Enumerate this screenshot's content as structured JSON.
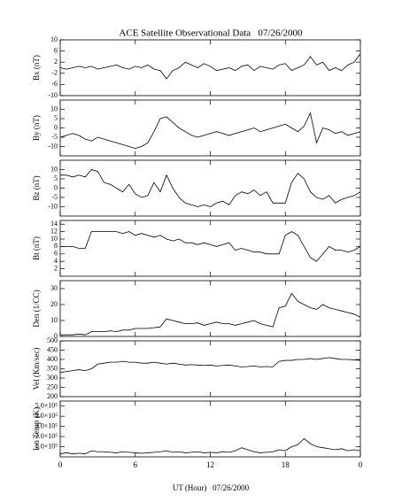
{
  "chart_data": [
    {
      "type": "line",
      "title": "ACE Satellite Observational Data   07/26/2000",
      "ylabel": "Bx (nT)",
      "color": "#000000",
      "x": [
        0,
        0.5,
        1,
        1.5,
        2,
        2.5,
        3,
        3.5,
        4,
        4.5,
        5,
        5.5,
        6,
        6.5,
        7,
        7.5,
        8,
        8.5,
        9,
        9.5,
        10,
        10.5,
        11,
        11.5,
        12,
        12.5,
        13,
        13.5,
        14,
        14.5,
        15,
        15.5,
        16,
        16.5,
        17,
        17.5,
        18,
        18.5,
        19,
        19.5,
        20,
        20.5,
        21,
        21.5,
        22,
        22.5,
        23,
        23.5,
        24
      ],
      "values": [
        0,
        -0.5,
        0,
        0.5,
        0,
        0.5,
        -0.5,
        0,
        0.5,
        1,
        0,
        -0.5,
        0.5,
        0,
        1,
        -0.5,
        -1,
        -4,
        -1,
        0,
        2,
        1,
        0,
        1.5,
        0.5,
        -1,
        -0.5,
        0,
        -1,
        0.5,
        1,
        -1,
        0.5,
        0,
        -0.5,
        1,
        1.5,
        -1,
        0,
        1,
        4,
        1,
        2,
        -1,
        0,
        -1,
        1,
        2,
        5
      ],
      "xlim": [
        0,
        24
      ],
      "ylim": [
        -10,
        10
      ],
      "yticks": [
        -10,
        -6,
        -2,
        2,
        6,
        10
      ]
    },
    {
      "type": "line",
      "ylabel": "By (nT)",
      "color": "#000000",
      "x": [
        0,
        0.5,
        1,
        1.5,
        2,
        2.5,
        3,
        3.5,
        4,
        4.5,
        5,
        5.5,
        6,
        6.5,
        7,
        7.5,
        8,
        8.5,
        9,
        9.5,
        10,
        10.5,
        11,
        11.5,
        12,
        12.5,
        13,
        13.5,
        14,
        14.5,
        15,
        15.5,
        16,
        16.5,
        17,
        17.5,
        18,
        18.5,
        19,
        19.5,
        20,
        20.5,
        21,
        21.5,
        22,
        22.5,
        23,
        23.5,
        24
      ],
      "values": [
        -5,
        -4,
        -3,
        -4,
        -6,
        -7,
        -5,
        -6,
        -7,
        -8,
        -9,
        -10,
        -11,
        -10,
        -8,
        -2,
        5,
        6,
        3,
        0,
        -2,
        -4,
        -5,
        -4,
        -3,
        -2,
        -3,
        -4,
        -3,
        -2,
        -1,
        0,
        -2,
        -1,
        0,
        1,
        2,
        0,
        -2,
        1,
        8,
        -8,
        0,
        -1,
        -3,
        -2,
        -4,
        -3,
        -2
      ],
      "xlim": [
        0,
        24
      ],
      "ylim": [
        -15,
        15
      ],
      "yticks": [
        -10,
        -5,
        0,
        5,
        10
      ]
    },
    {
      "type": "line",
      "ylabel": "Bz (nT)",
      "color": "#000000",
      "x": [
        0,
        0.5,
        1,
        1.5,
        2,
        2.5,
        3,
        3.5,
        4,
        4.5,
        5,
        5.5,
        6,
        6.5,
        7,
        7.5,
        8,
        8.5,
        9,
        9.5,
        10,
        10.5,
        11,
        11.5,
        12,
        12.5,
        13,
        13.5,
        14,
        14.5,
        15,
        15.5,
        16,
        16.5,
        17,
        17.5,
        18,
        18.5,
        19,
        19.5,
        20,
        20.5,
        21,
        21.5,
        22,
        22.5,
        23,
        23.5,
        24
      ],
      "values": [
        7,
        7,
        6,
        7,
        6,
        10,
        9,
        3,
        2,
        0,
        -2,
        2,
        -3,
        -5,
        -4,
        3,
        -2,
        7,
        0,
        -5,
        -8,
        -9,
        -10,
        -9,
        -10,
        -8,
        -7,
        -9,
        -4,
        -2,
        -3,
        -1,
        -4,
        -2,
        -8,
        -8,
        -8,
        3,
        8,
        5,
        -2,
        -5,
        -6,
        -4,
        -8,
        -6,
        -5,
        -4,
        -2
      ],
      "xlim": [
        0,
        24
      ],
      "ylim": [
        -15,
        15
      ],
      "yticks": [
        -10,
        -5,
        0,
        5,
        10
      ]
    },
    {
      "type": "line",
      "ylabel": "Bt (nT)",
      "color": "#000000",
      "x": [
        0,
        0.5,
        1,
        1.5,
        2,
        2.5,
        3,
        3.5,
        4,
        4.5,
        5,
        5.5,
        6,
        6.5,
        7,
        7.5,
        8,
        8.5,
        9,
        9.5,
        10,
        10.5,
        11,
        11.5,
        12,
        12.5,
        13,
        13.5,
        14,
        14.5,
        15,
        15.5,
        16,
        16.5,
        17,
        17.5,
        18,
        18.5,
        19,
        19.5,
        20,
        20.5,
        21,
        21.5,
        22,
        22.5,
        23,
        23.5,
        24
      ],
      "values": [
        8,
        8,
        8,
        7.5,
        7.5,
        12,
        12,
        12,
        12,
        12,
        11.5,
        12,
        11,
        11.5,
        11,
        10.5,
        11,
        10,
        9.5,
        10,
        9,
        9,
        8.5,
        9,
        8.5,
        8,
        8.5,
        9,
        7,
        7.5,
        7,
        6.5,
        6.5,
        6,
        6,
        6,
        11,
        12,
        11,
        8,
        5,
        4,
        6,
        8,
        7,
        7,
        6.5,
        7,
        8
      ],
      "xlim": [
        0,
        24
      ],
      "ylim": [
        0,
        15
      ],
      "yticks": [
        2,
        4,
        6,
        8,
        10,
        12,
        14
      ]
    },
    {
      "type": "line",
      "ylabel": "Den (1/CC)",
      "color": "#000000",
      "x": [
        0,
        0.5,
        1,
        1.5,
        2,
        2.5,
        3,
        3.5,
        4,
        4.5,
        5,
        5.5,
        6,
        6.5,
        7,
        7.5,
        8,
        8.5,
        9,
        9.5,
        10,
        10.5,
        11,
        11.5,
        12,
        12.5,
        13,
        13.5,
        14,
        14.5,
        15,
        15.5,
        16,
        16.5,
        17,
        17.5,
        18,
        18.5,
        19,
        19.5,
        20,
        20.5,
        21,
        21.5,
        22,
        22.5,
        23,
        23.5,
        24
      ],
      "values": [
        1,
        1,
        1,
        1.5,
        1,
        3,
        3,
        3,
        3.5,
        3,
        4,
        4,
        5,
        5,
        5,
        5.5,
        6,
        11,
        10,
        9,
        8,
        8,
        8.5,
        7,
        8,
        9,
        8,
        8,
        7,
        8,
        9,
        10,
        8,
        7,
        6,
        18,
        19,
        27,
        22,
        20,
        18,
        17,
        20,
        18,
        17,
        16,
        15,
        14,
        12
      ],
      "xlim": [
        0,
        24
      ],
      "ylim": [
        0,
        35
      ],
      "yticks": [
        0,
        10,
        20,
        30
      ]
    },
    {
      "type": "line",
      "ylabel": "Vel (Km/sec)",
      "color": "#000000",
      "x": [
        0,
        0.5,
        1,
        1.5,
        2,
        2.5,
        3,
        3.5,
        4,
        4.5,
        5,
        5.5,
        6,
        6.5,
        7,
        7.5,
        8,
        8.5,
        9,
        9.5,
        10,
        10.5,
        11,
        11.5,
        12,
        12.5,
        13,
        13.5,
        14,
        14.5,
        15,
        15.5,
        16,
        16.5,
        17,
        17.5,
        18,
        18.5,
        19,
        19.5,
        20,
        20.5,
        21,
        21.5,
        22,
        22.5,
        23,
        23.5,
        24
      ],
      "values": [
        330,
        335,
        340,
        345,
        340,
        350,
        375,
        380,
        385,
        385,
        390,
        385,
        385,
        380,
        380,
        385,
        380,
        375,
        380,
        375,
        370,
        372,
        370,
        368,
        370,
        365,
        368,
        370,
        365,
        360,
        362,
        365,
        360,
        362,
        360,
        390,
        395,
        395,
        400,
        400,
        405,
        400,
        405,
        410,
        405,
        400,
        400,
        398,
        395
      ],
      "xlim": [
        0,
        24
      ],
      "ylim": [
        200,
        500
      ],
      "yticks": [
        200,
        250,
        300,
        350,
        400,
        450,
        500
      ]
    },
    {
      "type": "line",
      "ylabel": "Ion Temp (K)",
      "xlabel": "UT (Hour)   07/26/2000",
      "color": "#000000",
      "x": [
        0,
        0.5,
        1,
        1.5,
        2,
        2.5,
        3,
        3.5,
        4,
        4.5,
        5,
        5.5,
        6,
        6.5,
        7,
        7.5,
        8,
        8.5,
        9,
        9.5,
        10,
        10.5,
        11,
        11.5,
        12,
        12.5,
        13,
        13.5,
        14,
        14.5,
        15,
        15.5,
        16,
        16.5,
        17,
        17.5,
        18,
        18.5,
        19,
        19.5,
        20,
        20.5,
        21,
        21.5,
        22,
        22.5,
        23,
        23.5,
        24
      ],
      "values": [
        30000,
        40000,
        30000,
        35000,
        30000,
        60000,
        50000,
        50000,
        45000,
        40000,
        50000,
        45000,
        40000,
        35000,
        40000,
        45000,
        50000,
        60000,
        45000,
        50000,
        40000,
        45000,
        50000,
        40000,
        45000,
        40000,
        50000,
        45000,
        60000,
        90000,
        70000,
        50000,
        40000,
        45000,
        50000,
        70000,
        60000,
        100000,
        120000,
        180000,
        130000,
        100000,
        90000,
        80000,
        70000,
        80000,
        60000,
        70000,
        60000
      ],
      "xlim": [
        0,
        24
      ],
      "ylim": [
        0,
        550000
      ],
      "yticks": [
        {
          "value": 100000,
          "label": "1.0×10⁵"
        },
        {
          "value": 200000,
          "label": "2.0×10⁵"
        },
        {
          "value": 300000,
          "label": "3.0×10⁵"
        },
        {
          "value": 400000,
          "label": "4.0×10⁵"
        },
        {
          "value": 500000,
          "label": "5.0×10⁵"
        }
      ],
      "xticks": [
        0,
        6,
        12,
        18,
        {
          "value": 24,
          "label": "0"
        }
      ]
    }
  ]
}
